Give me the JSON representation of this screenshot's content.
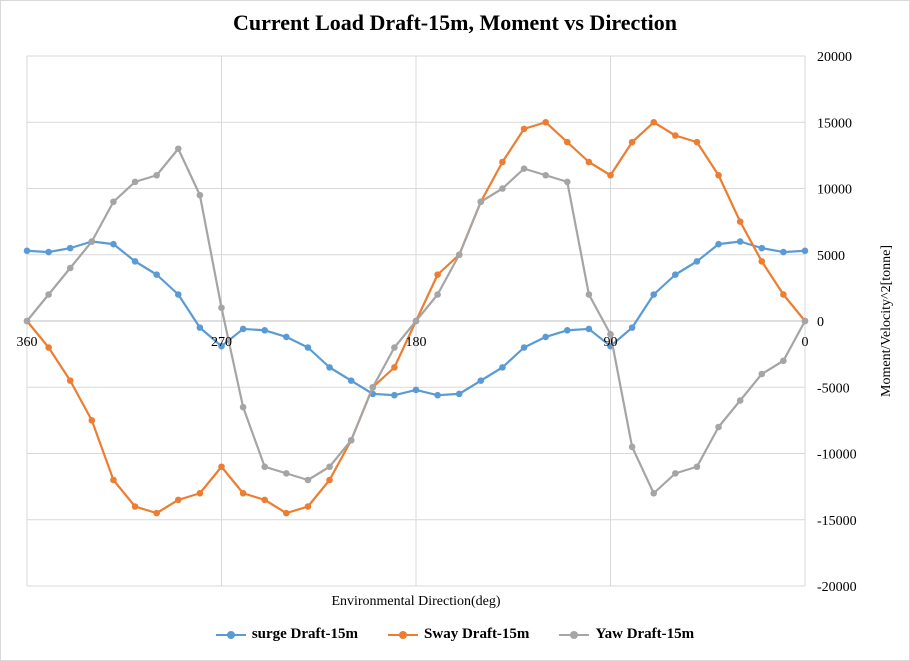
{
  "chart_data": {
    "type": "line",
    "title": "Current Load Draft-15m, Moment vs Direction",
    "xlabel": "Environmental  Direction(deg)",
    "ylabel": "Moment/Velocity^2[tonne]",
    "x_reversed": true,
    "xlim": [
      0,
      360
    ],
    "ylim": [
      -20000,
      20000
    ],
    "x_ticks": [
      "360",
      "270",
      "180",
      "90",
      "0"
    ],
    "y_ticks": [
      "20000",
      "15000",
      "10000",
      "5000",
      "0",
      "-5000",
      "-10000",
      "-15000",
      "-20000"
    ],
    "grid": "horizontal",
    "legend_position": "bottom",
    "x": [
      360,
      350,
      340,
      330,
      320,
      310,
      300,
      290,
      280,
      270,
      260,
      250,
      240,
      230,
      220,
      210,
      200,
      190,
      180,
      170,
      160,
      150,
      140,
      130,
      120,
      110,
      100,
      90,
      80,
      70,
      60,
      50,
      40,
      30,
      20,
      10,
      0
    ],
    "series": [
      {
        "name": "surge Draft-15m",
        "color": "#5b9bd5",
        "values": [
          5300,
          5200,
          5500,
          6000,
          5800,
          4500,
          3500,
          2000,
          -500,
          -1900,
          -600,
          -700,
          -1200,
          -2000,
          -3500,
          -4500,
          -5500,
          -5600,
          -5200,
          -5600,
          -5500,
          -4500,
          -3500,
          -2000,
          -1200,
          -700,
          -600,
          -1900,
          -500,
          2000,
          3500,
          4500,
          5800,
          6000,
          5500,
          5200,
          5300
        ]
      },
      {
        "name": "Sway Draft-15m",
        "color": "#ed7d31",
        "values": [
          0,
          -2000,
          -4500,
          -7500,
          -12000,
          -14000,
          -14500,
          -13500,
          -13000,
          -11000,
          -13000,
          -13500,
          -14500,
          -14000,
          -12000,
          -9000,
          -5000,
          -3500,
          0,
          3500,
          5000,
          9000,
          12000,
          14500,
          15000,
          13500,
          12000,
          11000,
          13500,
          15000,
          14000,
          13500,
          11000,
          7500,
          4500,
          2000,
          0
        ]
      },
      {
        "name": "Yaw Draft-15m",
        "color": "#a5a5a5",
        "values": [
          0,
          2000,
          4000,
          6000,
          9000,
          10500,
          11000,
          13000,
          9500,
          1000,
          -6500,
          -11000,
          -11500,
          -12000,
          -11000,
          -9000,
          -5000,
          -2000,
          0,
          2000,
          5000,
          9000,
          10000,
          11500,
          11000,
          10500,
          2000,
          -1000,
          -9500,
          -13000,
          -11500,
          -11000,
          -8000,
          -6000,
          -4000,
          -3000,
          0
        ]
      }
    ]
  }
}
